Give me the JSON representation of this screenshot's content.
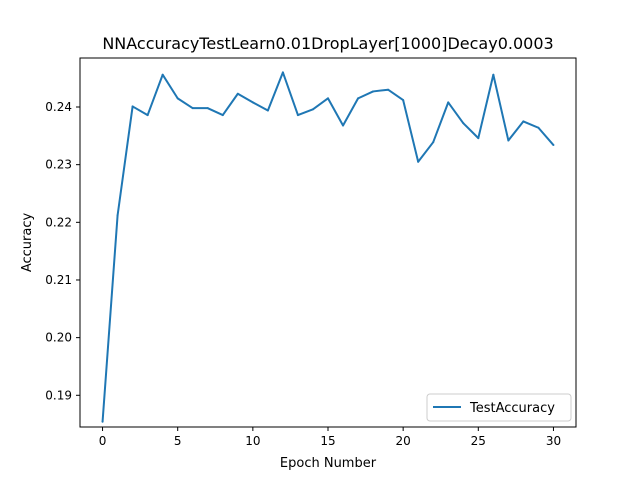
{
  "chart_data": {
    "type": "line",
    "title": "NNAccuracyTestLearn0.01DropLayer[1000]Decay0.0003",
    "xlabel": "Epoch Number",
    "ylabel": "Accuracy",
    "xlim": [
      -1.5,
      31.5
    ],
    "ylim": [
      0.1845,
      0.2485
    ],
    "xticks": [
      0,
      5,
      10,
      15,
      20,
      25,
      30
    ],
    "xtick_labels": [
      "0",
      "5",
      "10",
      "15",
      "20",
      "25",
      "30"
    ],
    "yticks": [
      0.19,
      0.2,
      0.21,
      0.22,
      0.23,
      0.24
    ],
    "ytick_labels": [
      "0.19",
      "0.20",
      "0.21",
      "0.22",
      "0.23",
      "0.24"
    ],
    "grid": false,
    "legend_position": "lower-right",
    "x": [
      0,
      1,
      2,
      3,
      4,
      5,
      6,
      7,
      8,
      9,
      10,
      11,
      12,
      13,
      14,
      15,
      16,
      17,
      18,
      19,
      20,
      21,
      22,
      23,
      24,
      25,
      26,
      27,
      28,
      29,
      30
    ],
    "series": [
      {
        "name": "TestAccuracy",
        "color": "#1f77b4",
        "values": [
          0.1854,
          0.2212,
          0.2401,
          0.2386,
          0.2456,
          0.2415,
          0.2398,
          0.2398,
          0.2386,
          0.2423,
          0.2408,
          0.2394,
          0.246,
          0.2386,
          0.2396,
          0.2415,
          0.2368,
          0.2415,
          0.2427,
          0.243,
          0.2412,
          0.2305,
          0.2339,
          0.2408,
          0.2372,
          0.2346,
          0.2456,
          0.2342,
          0.2375,
          0.2364,
          0.2334
        ]
      }
    ]
  }
}
